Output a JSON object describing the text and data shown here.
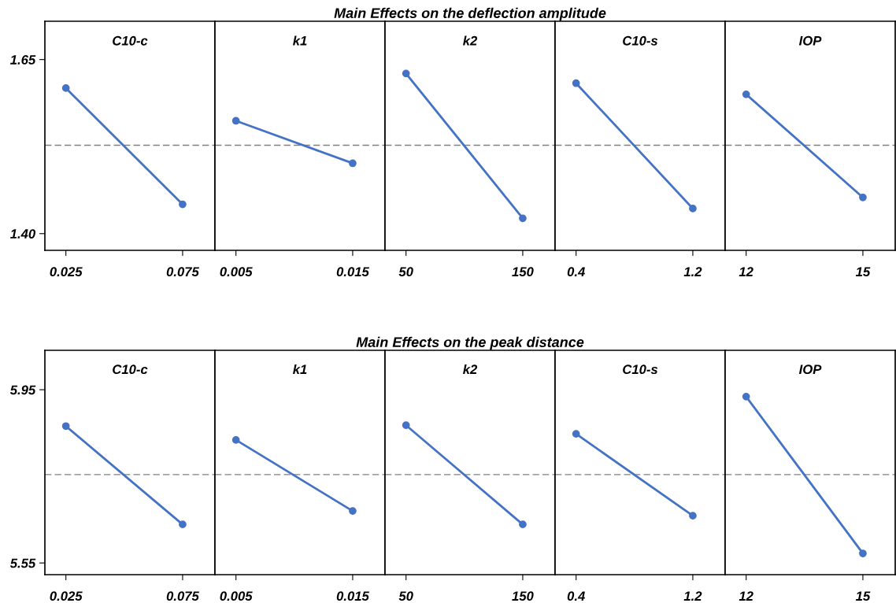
{
  "chart_data": [
    {
      "type": "line",
      "annotations": [
        "C10-c"
      ],
      "categories": [
        "0.025",
        "0.075"
      ],
      "series": [
        {
          "color": "#4472c4",
          "values": [
            1.609,
            1.442
          ]
        }
      ],
      "ylim": [
        1.376,
        1.705
      ],
      "yticks": [
        {
          "value": 1.4,
          "label": "1.40"
        },
        {
          "value": 1.65,
          "label": "1.65"
        }
      ],
      "ref_lines": [
        {
          "axis": "y",
          "value": 1.527,
          "color": "#808080",
          "line_style": "dashed"
        }
      ],
      "marker": "circle"
    },
    {
      "type": "line",
      "annotations": [
        "k1"
      ],
      "categories": [
        "0.005",
        "0.015"
      ],
      "series": [
        {
          "color": "#4472c4",
          "values": [
            1.562,
            1.501
          ]
        }
      ],
      "ylim": [
        1.376,
        1.705
      ],
      "tick_labels": "x",
      "ref_lines": [
        {
          "axis": "y",
          "value": 1.527,
          "color": "#808080",
          "line_style": "dashed"
        }
      ],
      "marker": "circle"
    },
    {
      "type": "line",
      "title": "Main Effects on the deflection amplitude",
      "annotations": [
        "k2"
      ],
      "categories": [
        "50",
        "150"
      ],
      "series": [
        {
          "color": "#4472c4",
          "values": [
            1.63,
            1.422
          ]
        }
      ],
      "ylim": [
        1.376,
        1.705
      ],
      "tick_labels": "x",
      "ref_lines": [
        {
          "axis": "y",
          "value": 1.527,
          "color": "#808080",
          "line_style": "dashed"
        }
      ],
      "marker": "circle"
    },
    {
      "type": "line",
      "annotations": [
        "C10-s"
      ],
      "categories": [
        "0.4",
        "1.2"
      ],
      "series": [
        {
          "color": "#4472c4",
          "values": [
            1.616,
            1.436
          ]
        }
      ],
      "ylim": [
        1.376,
        1.705
      ],
      "tick_labels": "x",
      "ref_lines": [
        {
          "axis": "y",
          "value": 1.527,
          "color": "#808080",
          "line_style": "dashed"
        }
      ],
      "marker": "circle"
    },
    {
      "type": "line",
      "annotations": [
        "IOP"
      ],
      "categories": [
        "12",
        "15"
      ],
      "series": [
        {
          "color": "#4472c4",
          "values": [
            1.6,
            1.452
          ]
        }
      ],
      "ylim": [
        1.376,
        1.705
      ],
      "tick_labels": "x",
      "ref_lines": [
        {
          "axis": "y",
          "value": 1.527,
          "color": "#808080",
          "line_style": "dashed"
        }
      ],
      "marker": "circle"
    },
    {
      "type": "line",
      "annotations": [
        "C10-c"
      ],
      "categories": [
        "0.025",
        "0.075"
      ],
      "series": [
        {
          "color": "#4472c4",
          "values": [
            5.866,
            5.639
          ]
        }
      ],
      "ylim": [
        5.523,
        6.041
      ],
      "yticks": [
        5.55,
        5.95
      ],
      "ref_lines": [
        {
          "axis": "y",
          "value": 5.754,
          "color": "#808080",
          "line_style": "dashed"
        }
      ],
      "marker": "circle"
    },
    {
      "type": "line",
      "annotations": [
        "k1"
      ],
      "categories": [
        "0.005",
        "0.015"
      ],
      "series": [
        {
          "color": "#4472c4",
          "values": [
            5.834,
            5.67
          ]
        }
      ],
      "ylim": [
        5.523,
        6.041
      ],
      "tick_labels": "x",
      "ref_lines": [
        {
          "axis": "y",
          "value": 5.754,
          "color": "#808080",
          "line_style": "dashed"
        }
      ],
      "marker": "circle"
    },
    {
      "type": "line",
      "title": "Main Effects on the peak distance",
      "annotations": [
        "k2"
      ],
      "categories": [
        "50",
        "150"
      ],
      "series": [
        {
          "color": "#4472c4",
          "values": [
            5.868,
            5.639
          ]
        }
      ],
      "ylim": [
        5.523,
        6.041
      ],
      "tick_labels": "x",
      "ref_lines": [
        {
          "axis": "y",
          "value": 5.754,
          "color": "#808080",
          "line_style": "dashed"
        }
      ],
      "marker": "circle"
    },
    {
      "type": "line",
      "annotations": [
        "C10-s"
      ],
      "categories": [
        "0.4",
        "1.2"
      ],
      "series": [
        {
          "color": "#4472c4",
          "values": [
            5.848,
            5.659
          ]
        }
      ],
      "ylim": [
        5.523,
        6.041
      ],
      "tick_labels": "x",
      "ref_lines": [
        {
          "axis": "y",
          "value": 5.754,
          "color": "#808080",
          "line_style": "dashed"
        }
      ],
      "marker": "circle"
    },
    {
      "type": "line",
      "annotations": [
        "IOP"
      ],
      "categories": [
        "12",
        "15"
      ],
      "series": [
        {
          "color": "#4472c4",
          "values": [
            5.934,
            5.572
          ]
        }
      ],
      "ylim": [
        5.523,
        6.041
      ],
      "tick_labels": "x",
      "ref_lines": [
        {
          "axis": "y",
          "value": 5.754,
          "color": "#808080",
          "line_style": "dashed"
        }
      ],
      "marker": "circle"
    }
  ]
}
